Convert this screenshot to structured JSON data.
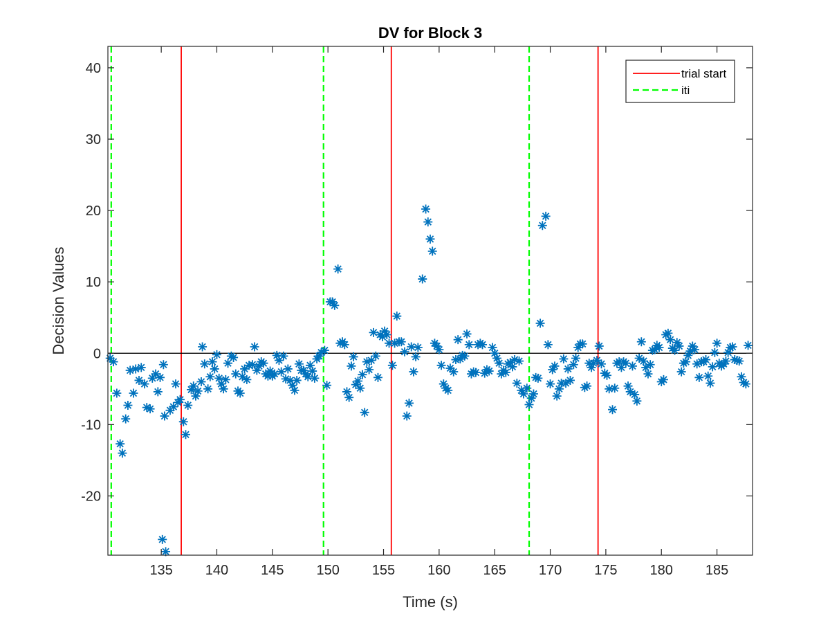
{
  "chart_data": {
    "type": "scatter",
    "title": "DV for Block 3",
    "xlabel": "Time (s)",
    "ylabel": "Decision Values",
    "xlim": [
      130.2,
      188.2
    ],
    "ylim": [
      -28.3,
      43
    ],
    "xticks": [
      135,
      140,
      145,
      150,
      155,
      160,
      165,
      170,
      175,
      180,
      185
    ],
    "yticks": [
      -20,
      -10,
      0,
      10,
      20,
      30,
      40
    ],
    "grid": false,
    "legend_position": "top-right",
    "colors": {
      "points": "#0072BD",
      "trial_start": "#FF0000",
      "iti": "#00FF00",
      "zero_line": "#000000"
    },
    "legend": [
      {
        "label": "trial start",
        "style": "solid",
        "color": "#FF0000"
      },
      {
        "label": "iti",
        "style": "dashed",
        "color": "#00FF00"
      }
    ],
    "zero_line": 0,
    "trial_start": [
      136.8,
      155.7,
      174.3
    ],
    "iti": [
      130.5,
      149.6,
      168.1
    ],
    "series": [
      {
        "marker": "asterisk",
        "points": [
          [
            130.4,
            -0.7
          ],
          [
            130.7,
            -1.2
          ],
          [
            131.0,
            -5.6
          ],
          [
            131.3,
            -12.7
          ],
          [
            131.5,
            -14.0
          ],
          [
            131.8,
            -9.2
          ],
          [
            132.0,
            -7.3
          ],
          [
            132.2,
            -2.4
          ],
          [
            132.5,
            -5.6
          ],
          [
            132.7,
            -2.2
          ],
          [
            133.0,
            -3.8
          ],
          [
            133.2,
            -2.0
          ],
          [
            133.5,
            -4.3
          ],
          [
            133.7,
            -7.6
          ],
          [
            134.0,
            -7.8
          ],
          [
            134.2,
            -3.5
          ],
          [
            134.5,
            -2.9
          ],
          [
            134.7,
            -5.4
          ],
          [
            134.9,
            -3.4
          ],
          [
            135.2,
            -1.6
          ],
          [
            135.3,
            -8.8
          ],
          [
            135.1,
            -26.1
          ],
          [
            135.4,
            -27.8
          ],
          [
            135.8,
            -8.0
          ],
          [
            136.1,
            -7.5
          ],
          [
            136.3,
            -4.3
          ],
          [
            136.5,
            -6.9
          ],
          [
            136.7,
            -6.5
          ],
          [
            137.0,
            -9.6
          ],
          [
            137.2,
            -11.4
          ],
          [
            137.4,
            -7.3
          ],
          [
            137.7,
            -5.1
          ],
          [
            137.9,
            -4.6
          ],
          [
            138.1,
            -6.0
          ],
          [
            138.3,
            -5.3
          ],
          [
            138.6,
            -4.0
          ],
          [
            138.7,
            0.9
          ],
          [
            138.9,
            -1.5
          ],
          [
            139.2,
            -5.0
          ],
          [
            139.4,
            -3.3
          ],
          [
            139.6,
            -1.2
          ],
          [
            139.8,
            -2.2
          ],
          [
            140.0,
            -0.2
          ],
          [
            140.2,
            -3.5
          ],
          [
            140.4,
            -4.3
          ],
          [
            140.6,
            -5.0
          ],
          [
            140.8,
            -3.7
          ],
          [
            141.0,
            -1.4
          ],
          [
            141.3,
            -0.4
          ],
          [
            141.5,
            -0.6
          ],
          [
            141.7,
            -2.9
          ],
          [
            141.9,
            -5.3
          ],
          [
            142.1,
            -5.6
          ],
          [
            142.3,
            -3.3
          ],
          [
            142.5,
            -2.2
          ],
          [
            142.7,
            -3.7
          ],
          [
            142.9,
            -1.7
          ],
          [
            143.2,
            -1.6
          ],
          [
            143.4,
            0.9
          ],
          [
            143.6,
            -2.4
          ],
          [
            143.8,
            -1.8
          ],
          [
            144.0,
            -1.2
          ],
          [
            144.2,
            -1.4
          ],
          [
            144.4,
            -2.9
          ],
          [
            144.6,
            -3.2
          ],
          [
            144.8,
            -2.5
          ],
          [
            145.0,
            -3.2
          ],
          [
            145.2,
            -2.9
          ],
          [
            145.4,
            -0.3
          ],
          [
            145.6,
            -1.0
          ],
          [
            145.8,
            -2.6
          ],
          [
            146.0,
            -0.4
          ],
          [
            146.2,
            -3.6
          ],
          [
            146.4,
            -2.2
          ],
          [
            146.6,
            -3.8
          ],
          [
            146.8,
            -4.5
          ],
          [
            147.0,
            -5.2
          ],
          [
            147.2,
            -3.8
          ],
          [
            147.4,
            -1.5
          ],
          [
            147.6,
            -2.4
          ],
          [
            147.8,
            -2.4
          ],
          [
            148.0,
            -2.9
          ],
          [
            148.2,
            -3.3
          ],
          [
            148.4,
            -1.7
          ],
          [
            148.6,
            -2.5
          ],
          [
            148.8,
            -3.5
          ],
          [
            149.0,
            -0.8
          ],
          [
            149.2,
            -0.4
          ],
          [
            149.4,
            0.1
          ],
          [
            149.7,
            0.4
          ],
          [
            149.9,
            -4.5
          ],
          [
            150.2,
            7.2
          ],
          [
            150.4,
            7.2
          ],
          [
            150.6,
            6.7
          ],
          [
            150.9,
            11.8
          ],
          [
            151.1,
            1.4
          ],
          [
            151.3,
            1.6
          ],
          [
            151.5,
            1.2
          ],
          [
            151.7,
            -5.4
          ],
          [
            151.9,
            -6.2
          ],
          [
            152.1,
            -1.8
          ],
          [
            152.3,
            -0.5
          ],
          [
            152.5,
            -4.4
          ],
          [
            152.7,
            -3.9
          ],
          [
            152.9,
            -4.9
          ],
          [
            153.1,
            -3.0
          ],
          [
            153.3,
            -8.3
          ],
          [
            153.5,
            -1.2
          ],
          [
            153.7,
            -2.3
          ],
          [
            153.9,
            -1.0
          ],
          [
            154.1,
            2.9
          ],
          [
            154.3,
            -0.4
          ],
          [
            154.5,
            -3.4
          ],
          [
            154.7,
            2.6
          ],
          [
            154.9,
            2.3
          ],
          [
            155.1,
            3.1
          ],
          [
            155.3,
            2.6
          ],
          [
            155.5,
            1.4
          ],
          [
            155.8,
            -1.7
          ],
          [
            156.0,
            1.4
          ],
          [
            156.2,
            5.2
          ],
          [
            156.4,
            1.6
          ],
          [
            156.6,
            1.6
          ],
          [
            156.9,
            0.2
          ],
          [
            157.1,
            -8.8
          ],
          [
            157.3,
            -7.0
          ],
          [
            157.5,
            0.9
          ],
          [
            157.7,
            -2.6
          ],
          [
            157.9,
            -0.5
          ],
          [
            158.1,
            0.8
          ],
          [
            158.5,
            10.4
          ],
          [
            158.8,
            20.2
          ],
          [
            159.0,
            18.4
          ],
          [
            159.2,
            16.0
          ],
          [
            159.4,
            14.3
          ],
          [
            159.6,
            1.4
          ],
          [
            159.8,
            1.0
          ],
          [
            160.0,
            0.5
          ],
          [
            160.2,
            -1.7
          ],
          [
            160.4,
            -4.3
          ],
          [
            160.6,
            -4.9
          ],
          [
            160.8,
            -5.2
          ],
          [
            161.0,
            -2.1
          ],
          [
            161.3,
            -2.6
          ],
          [
            161.5,
            -0.9
          ],
          [
            161.7,
            1.9
          ],
          [
            161.9,
            -0.8
          ],
          [
            162.1,
            -0.3
          ],
          [
            162.3,
            -0.4
          ],
          [
            162.5,
            2.7
          ],
          [
            162.7,
            1.2
          ],
          [
            162.9,
            -2.9
          ],
          [
            163.1,
            -2.6
          ],
          [
            163.3,
            -2.7
          ],
          [
            163.5,
            1.2
          ],
          [
            163.7,
            1.4
          ],
          [
            163.9,
            1.2
          ],
          [
            164.1,
            -2.8
          ],
          [
            164.3,
            -2.3
          ],
          [
            164.5,
            -2.5
          ],
          [
            164.8,
            0.8
          ],
          [
            165.0,
            0.0
          ],
          [
            165.2,
            -0.7
          ],
          [
            165.4,
            -1.4
          ],
          [
            165.6,
            -2.9
          ],
          [
            165.8,
            -2.4
          ],
          [
            166.0,
            -2.7
          ],
          [
            166.2,
            -1.5
          ],
          [
            166.4,
            -1.3
          ],
          [
            166.6,
            -1.9
          ],
          [
            166.8,
            -0.9
          ],
          [
            167.0,
            -4.2
          ],
          [
            167.2,
            -1.1
          ],
          [
            167.4,
            -5.2
          ],
          [
            167.6,
            -5.7
          ],
          [
            167.9,
            -4.9
          ],
          [
            168.1,
            -7.2
          ],
          [
            168.3,
            -6.3
          ],
          [
            168.5,
            -5.7
          ],
          [
            168.7,
            -3.4
          ],
          [
            168.9,
            -3.5
          ],
          [
            169.1,
            4.2
          ],
          [
            169.3,
            17.9
          ],
          [
            169.6,
            19.2
          ],
          [
            169.8,
            1.2
          ],
          [
            170.0,
            -4.3
          ],
          [
            170.2,
            -2.3
          ],
          [
            170.4,
            -1.8
          ],
          [
            170.6,
            -6.0
          ],
          [
            170.8,
            -5.0
          ],
          [
            171.0,
            -4.2
          ],
          [
            171.2,
            -0.8
          ],
          [
            171.4,
            -4.2
          ],
          [
            171.6,
            -2.2
          ],
          [
            171.8,
            -3.8
          ],
          [
            172.1,
            -1.6
          ],
          [
            172.3,
            -0.7
          ],
          [
            172.5,
            0.8
          ],
          [
            172.7,
            1.3
          ],
          [
            172.9,
            1.3
          ],
          [
            173.1,
            -4.8
          ],
          [
            173.3,
            -4.6
          ],
          [
            173.5,
            -1.4
          ],
          [
            173.7,
            -2.0
          ],
          [
            173.9,
            -1.4
          ],
          [
            174.2,
            -1.0
          ],
          [
            174.4,
            1.0
          ],
          [
            174.6,
            -1.5
          ],
          [
            174.9,
            -2.8
          ],
          [
            175.1,
            -3.1
          ],
          [
            175.3,
            -5.0
          ],
          [
            175.6,
            -7.9
          ],
          [
            175.8,
            -4.9
          ],
          [
            176.0,
            -1.4
          ],
          [
            176.2,
            -1.2
          ],
          [
            176.4,
            -2.0
          ],
          [
            176.6,
            -1.2
          ],
          [
            176.8,
            -1.4
          ],
          [
            177.0,
            -4.6
          ],
          [
            177.2,
            -5.4
          ],
          [
            177.4,
            -1.8
          ],
          [
            177.6,
            -5.8
          ],
          [
            177.8,
            -6.7
          ],
          [
            178.0,
            -0.7
          ],
          [
            178.2,
            1.6
          ],
          [
            178.4,
            -1.1
          ],
          [
            178.6,
            -2.0
          ],
          [
            178.8,
            -2.9
          ],
          [
            179.0,
            -1.6
          ],
          [
            179.2,
            0.4
          ],
          [
            179.4,
            0.5
          ],
          [
            179.6,
            1.1
          ],
          [
            179.8,
            0.8
          ],
          [
            180.0,
            -4.0
          ],
          [
            180.2,
            -3.7
          ],
          [
            180.4,
            2.6
          ],
          [
            180.6,
            2.8
          ],
          [
            180.8,
            1.9
          ],
          [
            181.0,
            0.7
          ],
          [
            181.2,
            0.4
          ],
          [
            181.4,
            1.5
          ],
          [
            181.6,
            1.0
          ],
          [
            181.8,
            -2.6
          ],
          [
            182.0,
            -1.4
          ],
          [
            182.2,
            -1.2
          ],
          [
            182.4,
            -0.3
          ],
          [
            182.6,
            0.3
          ],
          [
            182.8,
            1.0
          ],
          [
            183.0,
            0.5
          ],
          [
            183.2,
            -1.5
          ],
          [
            183.4,
            -3.4
          ],
          [
            183.6,
            -1.2
          ],
          [
            183.8,
            -1.2
          ],
          [
            184.0,
            -0.9
          ],
          [
            184.2,
            -3.2
          ],
          [
            184.4,
            -4.2
          ],
          [
            184.6,
            -1.9
          ],
          [
            184.8,
            0.1
          ],
          [
            185.0,
            1.4
          ],
          [
            185.2,
            -1.4
          ],
          [
            185.4,
            -1.8
          ],
          [
            185.6,
            -1.5
          ],
          [
            185.8,
            -1.1
          ],
          [
            186.0,
            0.1
          ],
          [
            186.2,
            0.8
          ],
          [
            186.4,
            0.9
          ],
          [
            186.6,
            -0.9
          ],
          [
            186.8,
            -1.0
          ],
          [
            187.0,
            -1.1
          ],
          [
            187.2,
            -3.3
          ],
          [
            187.4,
            -4.1
          ],
          [
            187.6,
            -4.3
          ],
          [
            187.8,
            1.1
          ]
        ]
      }
    ]
  }
}
